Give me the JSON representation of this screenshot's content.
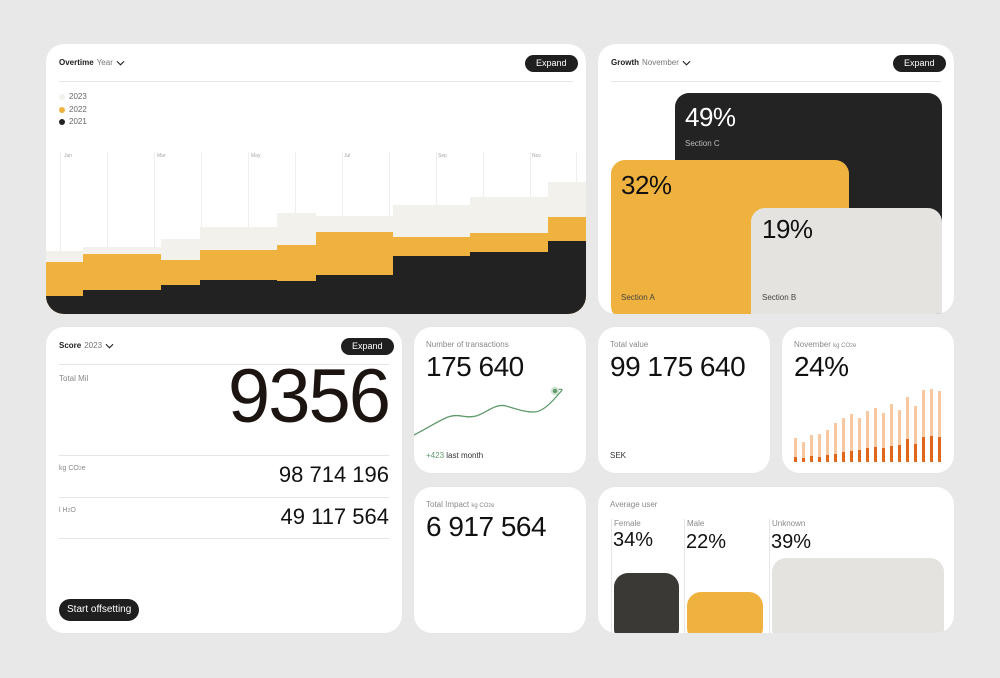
{
  "overtime": {
    "title": "Overtime",
    "filter": "Year",
    "expand_label": "Expand",
    "legend": [
      {
        "label": "2023",
        "color": "#f3f1ec"
      },
      {
        "label": "2022",
        "color": "#f0b23e"
      },
      {
        "label": "2021",
        "color": "#222222"
      }
    ],
    "months": [
      "Jan",
      "Mar",
      "May",
      "Jul",
      "Sep",
      "Nov"
    ]
  },
  "growth": {
    "title": "Growth",
    "filter": "November",
    "expand_label": "Expand",
    "sections": [
      {
        "percent": "49%",
        "label": "Section C",
        "color": "#232323"
      },
      {
        "percent": "32%",
        "label": "Section A",
        "color": "#f0b23e"
      },
      {
        "percent": "19%",
        "label": "Section B",
        "color": "#e4e3df"
      }
    ]
  },
  "score": {
    "title": "Score",
    "filter": "2023",
    "expand_label": "Expand",
    "total_label": "Total Mil",
    "total_value": "9356",
    "co2_label_prefix": "kg CO",
    "co2_label_sub": "2",
    "co2_label_suffix": "e",
    "co2_value": "98 714 196",
    "h2o_label_prefix": "l H",
    "h2o_label_sub": "2",
    "h2o_label_suffix": "O",
    "h2o_value": "49 117 564",
    "cta_label": "Start offsetting"
  },
  "transactions": {
    "label": "Number of transactions",
    "value": "175 640",
    "delta": "+423",
    "delta_suffix": "last month",
    "accent": "#5f9a6b"
  },
  "total_value": {
    "label": "Total value",
    "value": "99 175 640",
    "currency": "SEK"
  },
  "november": {
    "label_prefix": "November",
    "label_unit_prefix": "kg CO",
    "label_unit_sub": "2",
    "label_unit_suffix": "e",
    "value": "24%",
    "colors": {
      "light": "#f6c9a2",
      "dark": "#e0661a"
    }
  },
  "total_impact": {
    "label_prefix": "Total Impact",
    "label_unit_prefix": "kg CO",
    "label_unit_sub": "2",
    "label_unit_suffix": "e",
    "value": "6 917 564"
  },
  "average_user": {
    "label": "Average user",
    "groups": [
      {
        "label": "Female",
        "value": "34%",
        "color": "#3a3935"
      },
      {
        "label": "Male",
        "value": "22%",
        "color": "#f0b23e"
      },
      {
        "label": "Unknown",
        "value": "39%",
        "color": "#e4e3df"
      }
    ]
  }
}
